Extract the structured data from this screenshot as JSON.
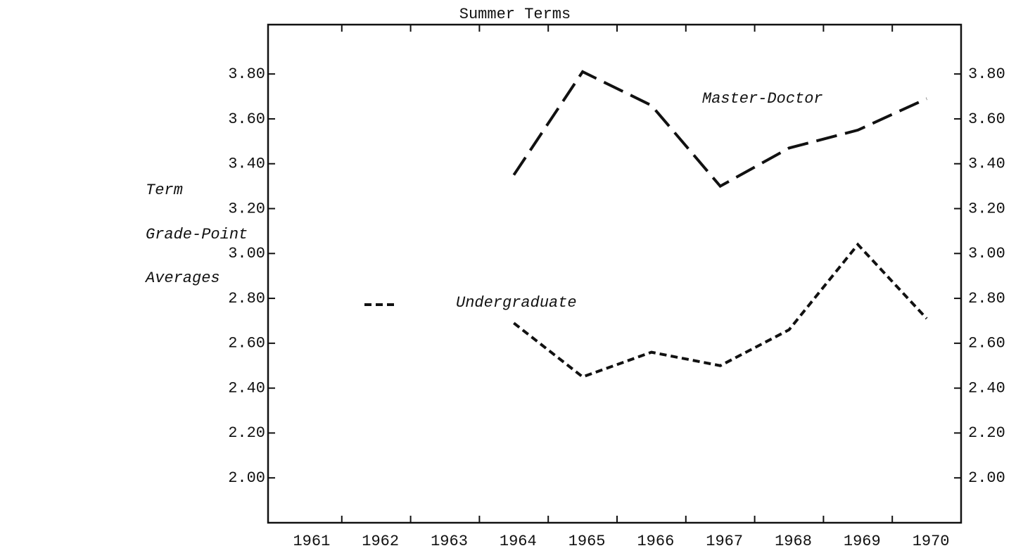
{
  "chart_data": {
    "type": "line",
    "title": "Summer Terms",
    "y_label": [
      "Term",
      "Grade-Point",
      "Averages"
    ],
    "categories": [
      "1961",
      "1962",
      "1963",
      "1964",
      "1965",
      "1966",
      "1967",
      "1968",
      "1969",
      "1970"
    ],
    "series": [
      {
        "name": "Master-Doctor",
        "color": "#111111",
        "dash": "long",
        "values": [
          null,
          null,
          null,
          3.35,
          3.81,
          3.66,
          3.3,
          3.47,
          3.55,
          3.69
        ]
      },
      {
        "name": "Undergraduate",
        "color": "#111111",
        "dash": "short",
        "values": [
          null,
          null,
          null,
          2.69,
          2.45,
          2.56,
          2.5,
          2.66,
          3.04,
          2.71
        ]
      }
    ],
    "ylim": [
      1.8,
      4.02
    ],
    "yticks": [
      {
        "value": 2.0,
        "label": "2.00"
      },
      {
        "value": 2.2,
        "label": "2.20"
      },
      {
        "value": 2.4,
        "label": "2.40"
      },
      {
        "value": 2.6,
        "label": "2.60"
      },
      {
        "value": 2.8,
        "label": "2.80"
      },
      {
        "value": 3.0,
        "label": "3.00"
      },
      {
        "value": 3.2,
        "label": "3.20"
      },
      {
        "value": 3.4,
        "label": "3.40"
      },
      {
        "value": 3.6,
        "label": "3.60"
      },
      {
        "value": 3.8,
        "label": "3.80"
      }
    ],
    "grid": false
  }
}
